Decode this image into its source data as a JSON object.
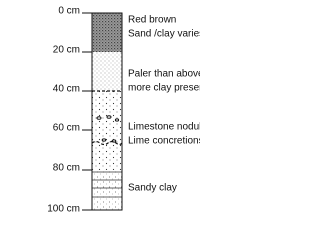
{
  "depth_labels": [
    "0 cm",
    "20 cm",
    "40 cm",
    "60 cm",
    "80 cm",
    "100 cm"
  ],
  "layers": [
    {
      "description": [
        "Red brown",
        "Sand /clay varies"
      ]
    },
    {
      "description": [
        "Paler than above",
        "more clay present"
      ]
    },
    {
      "description": [
        "Limestone nodules",
        "Lime concretions"
      ]
    },
    {
      "description": [
        "Sandy clay"
      ]
    }
  ]
}
